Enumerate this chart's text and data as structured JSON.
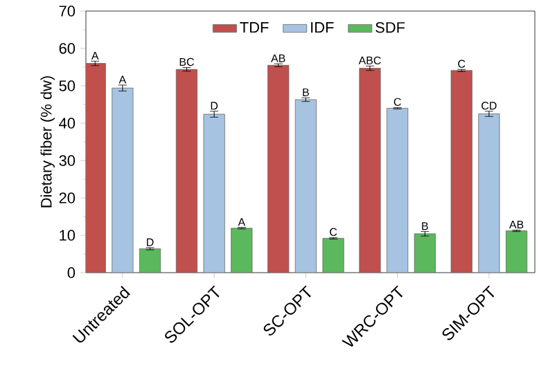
{
  "chart_data": {
    "type": "bar",
    "ylabel": "Dietary fiber (% dw)",
    "categories": [
      "Untreated",
      "SOL-OPT",
      "SC-OPT",
      "WRC-OPT",
      "SIM-OPT"
    ],
    "series": [
      {
        "name": "TDF",
        "color": "#c0504d",
        "values": [
          56.0,
          54.4,
          55.5,
          54.7,
          54.1
        ],
        "errors": [
          0.6,
          0.5,
          0.4,
          0.6,
          0.3
        ],
        "value_labels": [
          "A",
          "BC",
          "AB",
          "ABC",
          "C"
        ]
      },
      {
        "name": "IDF",
        "color": "#a6c3e2",
        "values": [
          49.4,
          42.4,
          46.3,
          44.0,
          42.5
        ],
        "errors": [
          0.8,
          0.8,
          0.5,
          0.2,
          0.7
        ],
        "value_labels": [
          "A",
          "D",
          "B",
          "C",
          "CD"
        ]
      },
      {
        "name": "SDF",
        "color": "#5cb85c",
        "values": [
          6.4,
          11.9,
          9.2,
          10.4,
          11.2
        ],
        "errors": [
          0.3,
          0.2,
          0.2,
          0.6,
          0.2
        ],
        "value_labels": [
          "D",
          "A",
          "C",
          "B",
          "AB"
        ]
      }
    ],
    "ylim": [
      0,
      70
    ],
    "yticks": [
      0,
      10,
      20,
      30,
      40,
      50,
      60,
      70
    ],
    "legend": "top",
    "grid": false
  }
}
